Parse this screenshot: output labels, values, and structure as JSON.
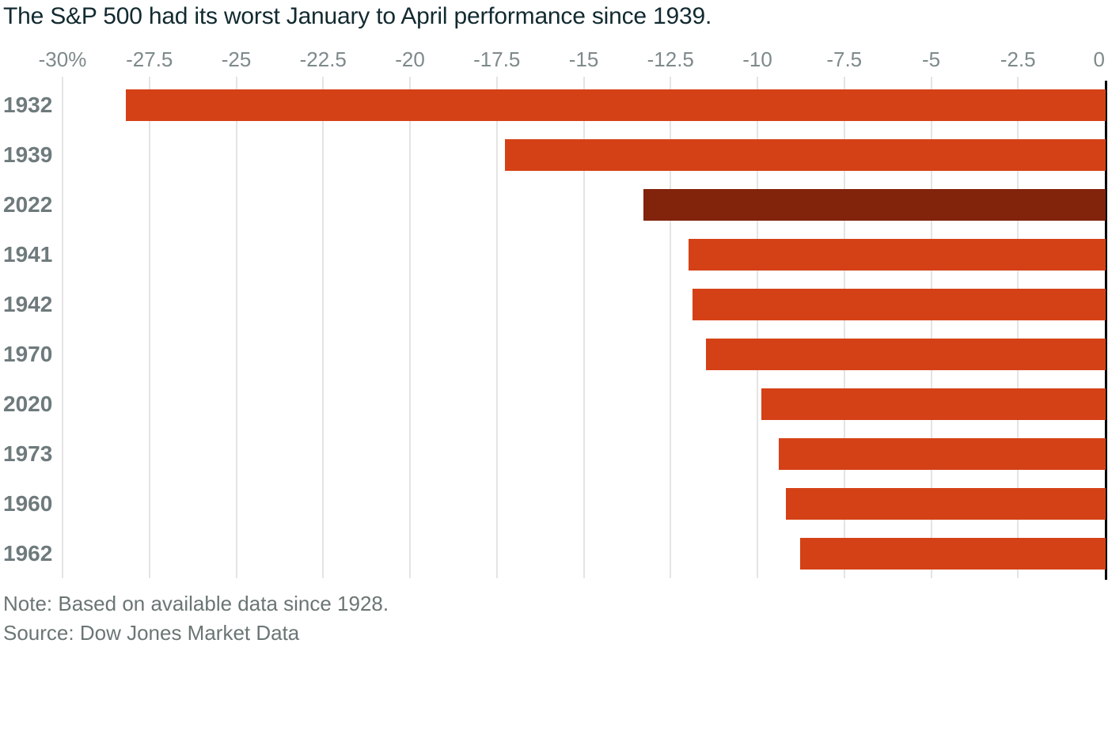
{
  "page": {
    "title": "The S&P 500 had its worst January to April performance since 1939.",
    "note": "Note: Based on available data since 1928.",
    "source": "Source: Dow Jones Market Data"
  },
  "colors": {
    "bar": "#d54117",
    "highlight_bar": "#82230c",
    "title_text": "#122a30",
    "tick_label": "#7e898b",
    "year_label": "#6e7a7c",
    "note_text": "#6b7674",
    "gridline": "#e4e4e4",
    "zero_axis": "#000000",
    "background": "#ffffff"
  },
  "chart_data": {
    "type": "bar",
    "orientation": "horizontal",
    "title": "The S&P 500 had its worst January to April performance since 1939.",
    "xlabel": "",
    "ylabel": "",
    "categories": [
      "1932",
      "1939",
      "2022",
      "1941",
      "1942",
      "1970",
      "2020",
      "1973",
      "1960",
      "1962"
    ],
    "values": [
      -28.2,
      -17.3,
      -13.3,
      -12.0,
      -11.9,
      -11.5,
      -9.9,
      -9.4,
      -9.2,
      -8.8
    ],
    "unit": "percent",
    "highlight_category": "2022",
    "xlim": [
      -30,
      0
    ],
    "grid": "vertical",
    "legend": "none",
    "x_ticks": [
      {
        "value": -30,
        "label": "-30%"
      },
      {
        "value": -27.5,
        "label": "-27.5"
      },
      {
        "value": -25,
        "label": "-25"
      },
      {
        "value": -22.5,
        "label": "-22.5"
      },
      {
        "value": -20,
        "label": "-20"
      },
      {
        "value": -17.5,
        "label": "-17.5"
      },
      {
        "value": -15,
        "label": "-15"
      },
      {
        "value": -12.5,
        "label": "-12.5"
      },
      {
        "value": -10,
        "label": "-10"
      },
      {
        "value": -7.5,
        "label": "-7.5"
      },
      {
        "value": -5,
        "label": "-5"
      },
      {
        "value": -2.5,
        "label": "-2.5"
      },
      {
        "value": 0,
        "label": "0"
      }
    ],
    "note": "Note: Based on available data since 1928.",
    "source": "Source: Dow Jones Market Data"
  }
}
